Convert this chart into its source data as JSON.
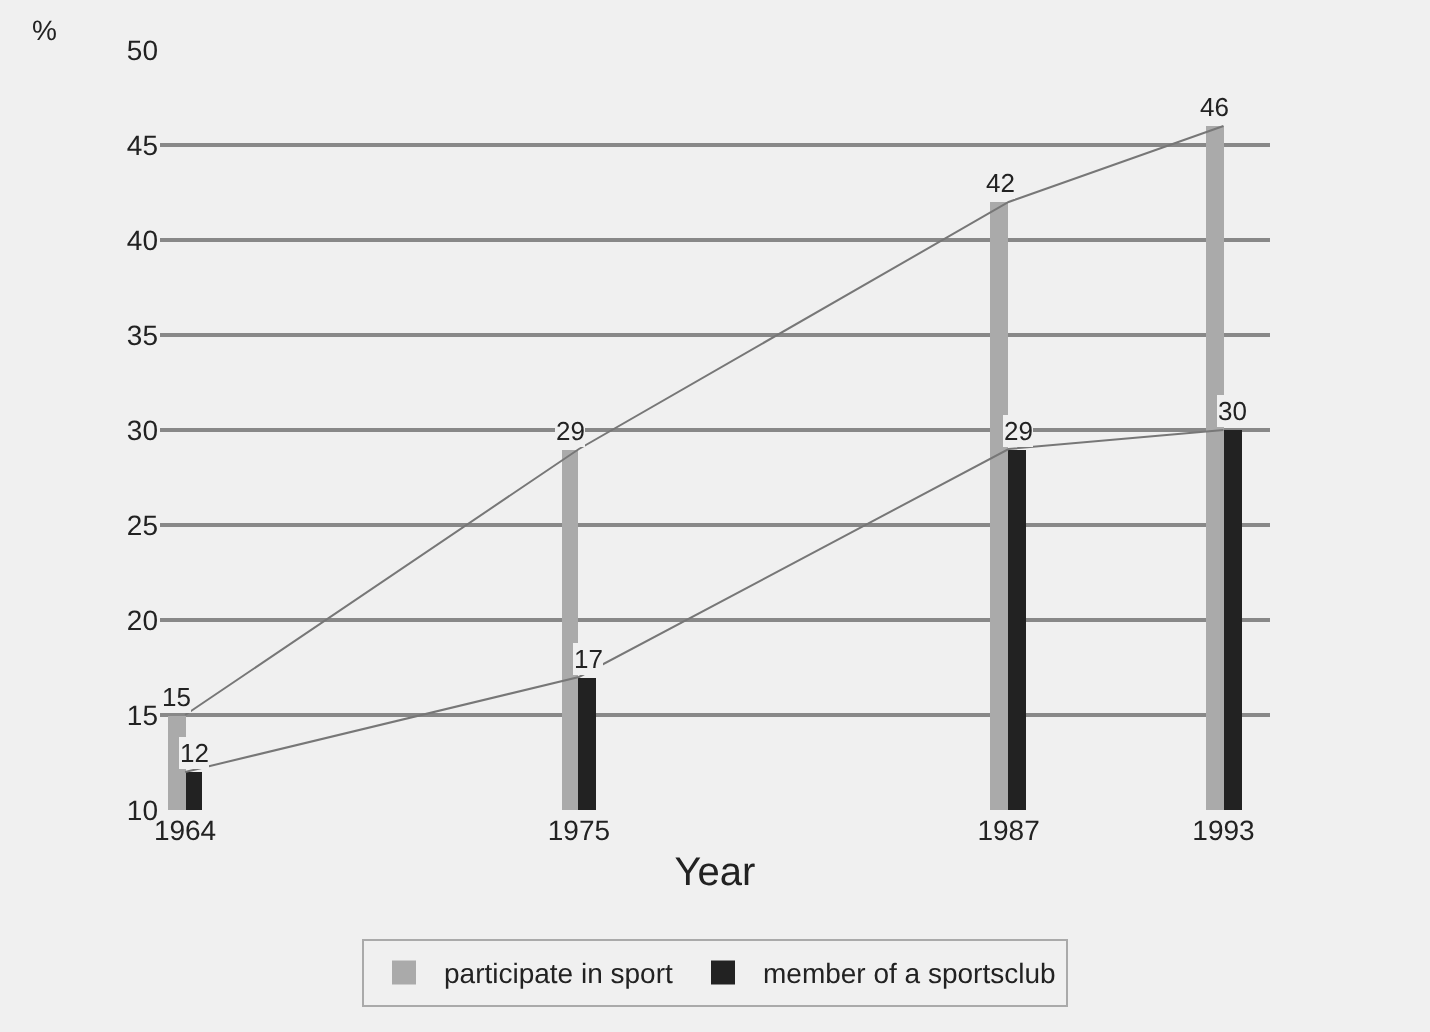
{
  "chart_data": {
    "type": "bar",
    "xlabel": "Year",
    "ylabel": "%",
    "x": [
      1964,
      1975,
      1987,
      1993
    ],
    "series": [
      {
        "name": "participate in sport",
        "color": "#aaaaaa",
        "values": [
          15,
          29,
          42,
          46
        ]
      },
      {
        "name": "member of a sportsclub",
        "color": "#222222",
        "values": [
          12,
          17,
          29,
          30
        ]
      },
      {
        "type": "line",
        "color": "#777777",
        "x": [
          1964,
          1975,
          1987,
          1993
        ],
        "values": [
          15,
          29,
          42,
          46
        ],
        "value_labels": [
          null,
          null,
          null,
          null
        ]
      },
      {
        "type": "line",
        "color": "#777777",
        "x": [
          1964,
          1975,
          1987,
          1993
        ],
        "values": [
          12,
          17,
          29,
          30
        ],
        "value_labels": [
          null,
          null,
          null,
          null
        ]
      }
    ],
    "xlim": [
      1963.3,
      1994.3
    ],
    "xticks": [
      1964,
      1975,
      1987,
      1993
    ],
    "ylim": [
      10,
      50
    ],
    "yticks": [
      10,
      15,
      20,
      25,
      30,
      35,
      40,
      45,
      50
    ],
    "grid": "y",
    "legend": "bottom",
    "data_labels": true,
    "marker": "none",
    "line_style": "solid"
  }
}
